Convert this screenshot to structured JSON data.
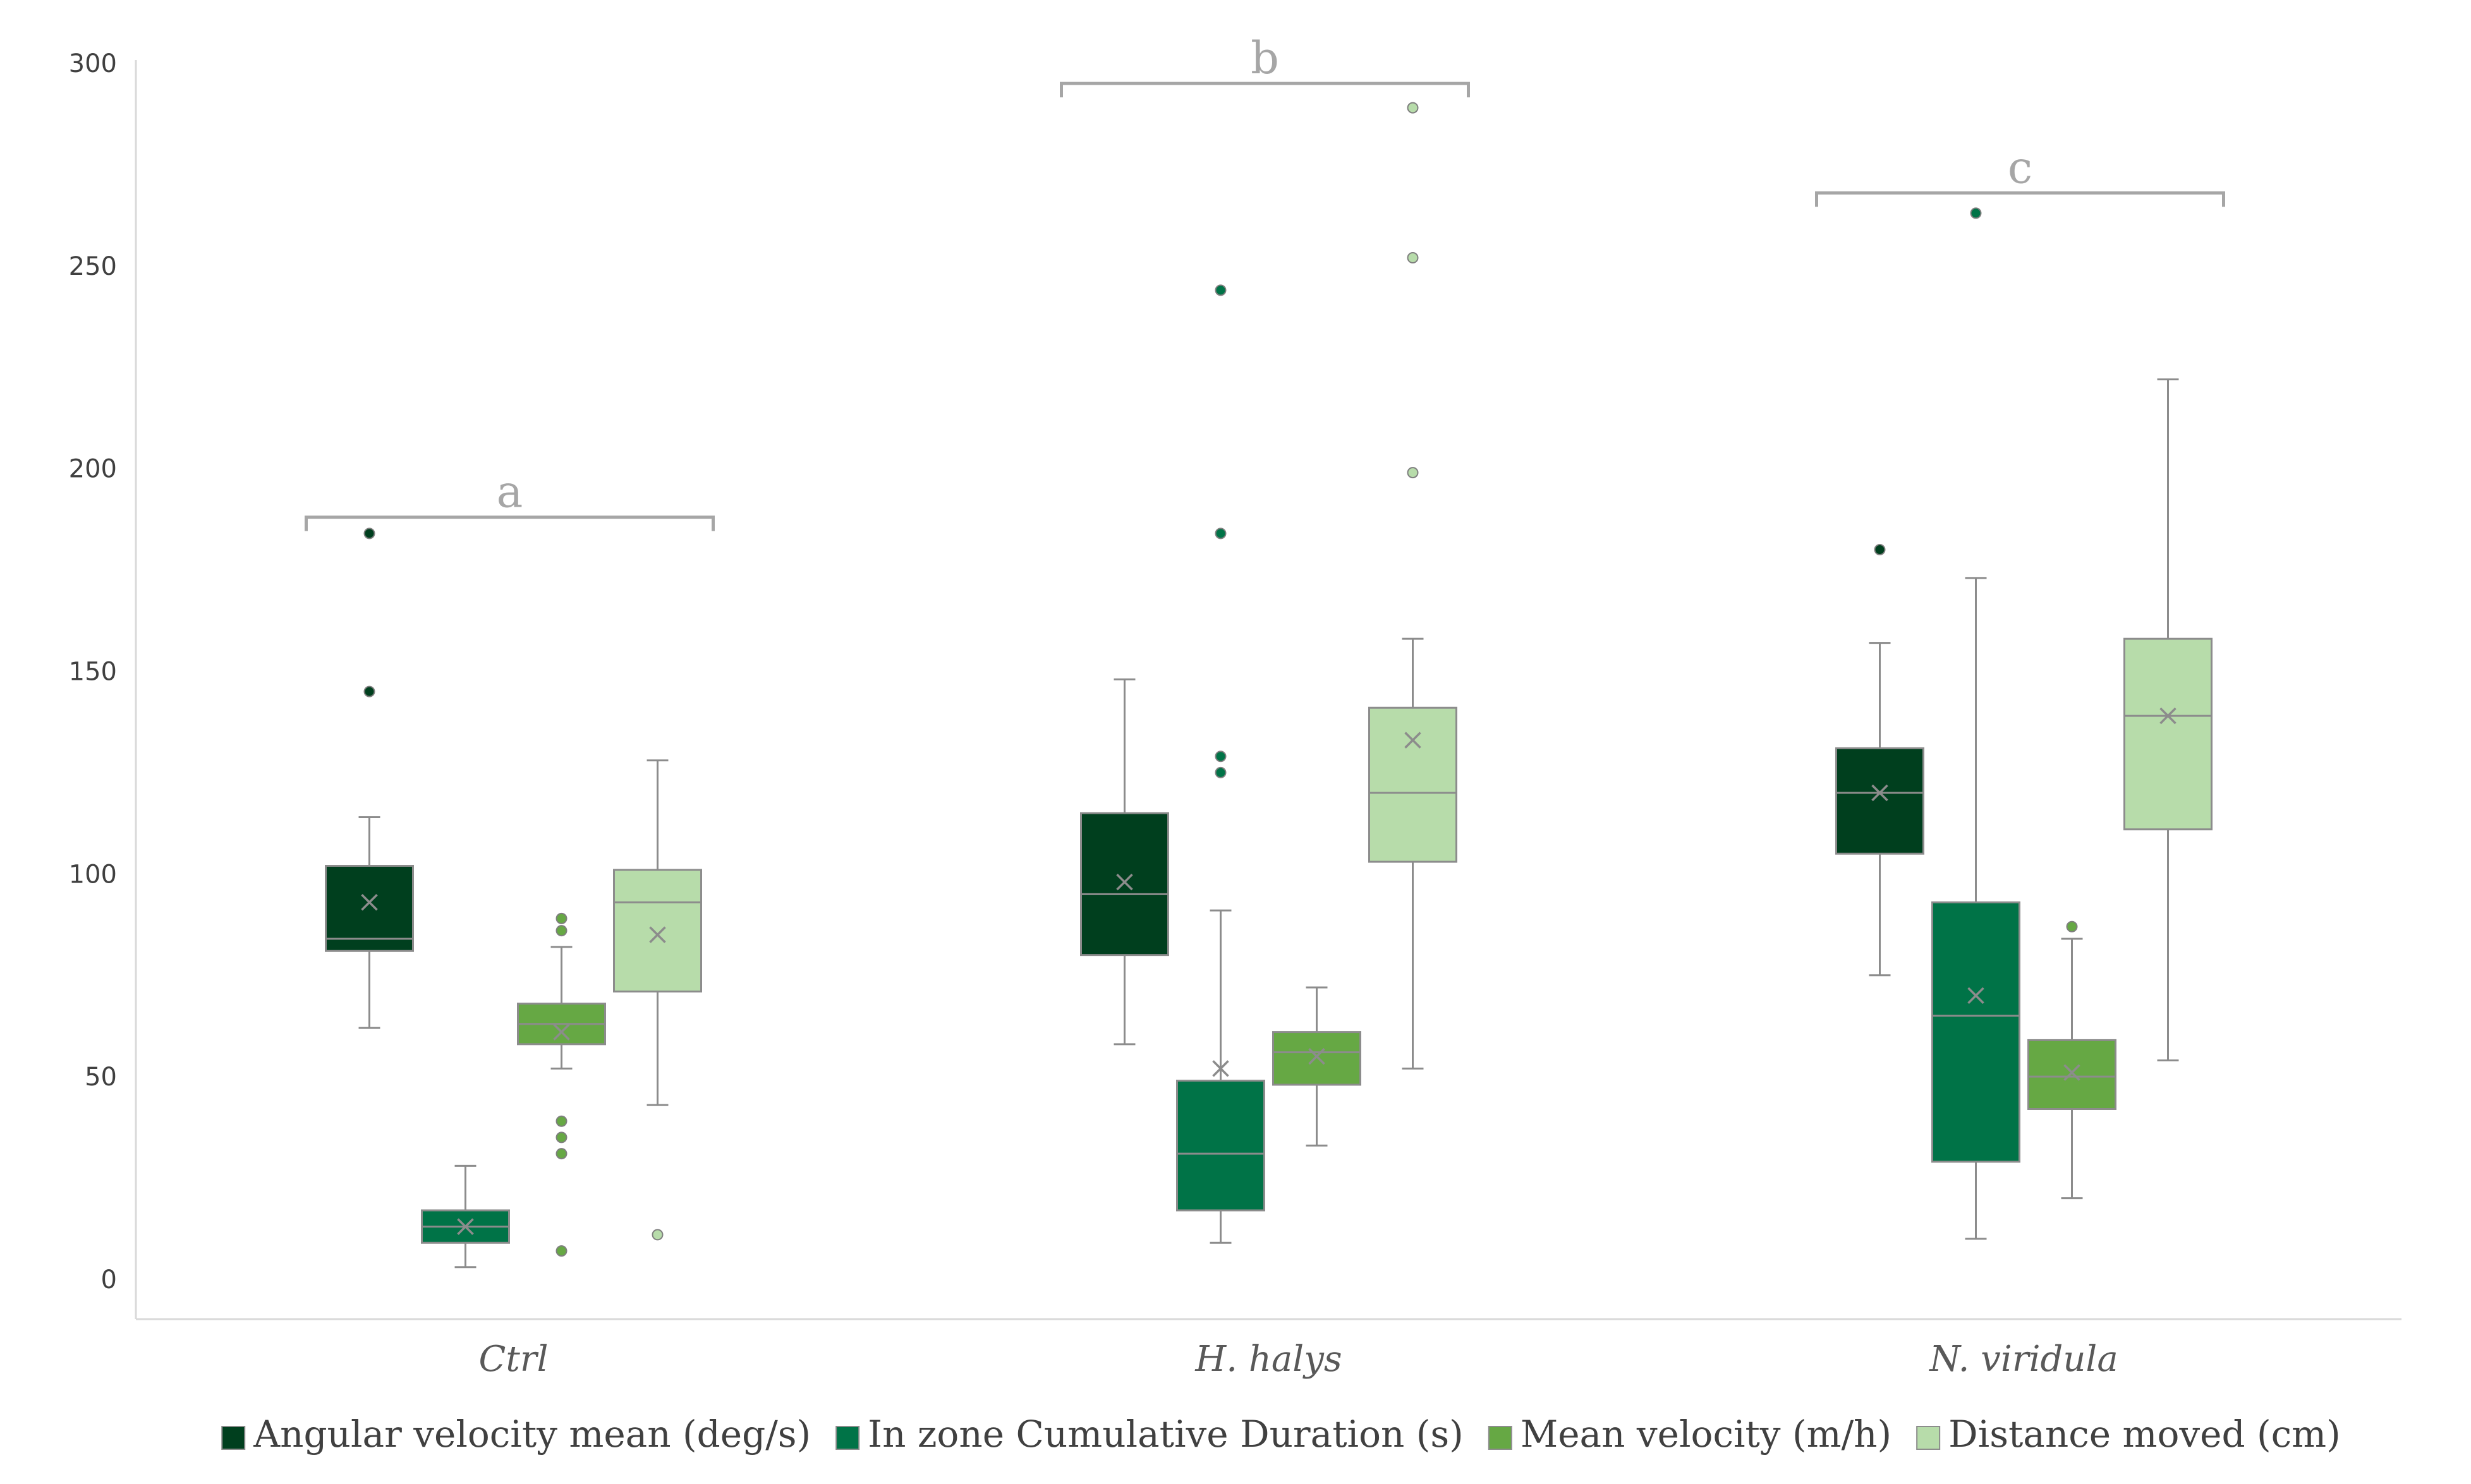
{
  "chart_data": {
    "type": "box",
    "title": "",
    "xlabel": "",
    "ylabel": "",
    "ylim": [
      0,
      300
    ],
    "yticks": [
      0,
      50,
      100,
      150,
      200,
      250,
      300
    ],
    "categories": [
      "Ctrl",
      "H. halys",
      "N. viridula"
    ],
    "series": [
      {
        "name": "Angular velocity mean (deg/s)",
        "color": "#003f1e",
        "boxes": [
          {
            "min": 62,
            "q1": 81,
            "median": 84,
            "q3": 102,
            "max": 114,
            "mean": 93,
            "outliers": [
              145,
              184
            ]
          },
          {
            "min": 58,
            "q1": 80,
            "median": 95,
            "q3": 115,
            "max": 148,
            "mean": 98,
            "outliers": []
          },
          {
            "min": 75,
            "q1": 105,
            "median": 120,
            "q3": 131,
            "max": 157,
            "mean": 120,
            "outliers": [
              180
            ]
          }
        ]
      },
      {
        "name": "In zone Cumulative Duration (s)",
        "color": "#007347",
        "boxes": [
          {
            "min": 3,
            "q1": 9,
            "median": 13,
            "q3": 17,
            "max": 28,
            "mean": 13,
            "outliers": []
          },
          {
            "min": 9,
            "q1": 17,
            "median": 31,
            "q3": 49,
            "max": 91,
            "mean": 52,
            "outliers": [
              125,
              129,
              184,
              244
            ]
          },
          {
            "min": 10,
            "q1": 29,
            "median": 65,
            "q3": 93,
            "max": 173,
            "mean": 70,
            "outliers": [
              263
            ]
          }
        ]
      },
      {
        "name": "Mean velocity (m/h)",
        "color": "#66a844",
        "boxes": [
          {
            "min": 52,
            "q1": 58,
            "median": 63,
            "q3": 68,
            "max": 82,
            "mean": 61,
            "outliers": [
              7,
              31,
              35,
              39,
              86,
              89
            ]
          },
          {
            "min": 33,
            "q1": 48,
            "median": 56,
            "q3": 61,
            "max": 72,
            "mean": 55,
            "outliers": []
          },
          {
            "min": 20,
            "q1": 42,
            "median": 50,
            "q3": 59,
            "max": 84,
            "mean": 51,
            "outliers": [
              87
            ]
          }
        ]
      },
      {
        "name": "Distance moved (cm)",
        "color": "#b7dcaa",
        "boxes": [
          {
            "min": 43,
            "q1": 71,
            "median": 93,
            "q3": 101,
            "max": 128,
            "mean": 85,
            "outliers": [
              11
            ]
          },
          {
            "min": 52,
            "q1": 103,
            "median": 120,
            "q3": 141,
            "max": 158,
            "mean": 133,
            "outliers": [
              199,
              252,
              289
            ]
          },
          {
            "min": 54,
            "q1": 111,
            "median": 139,
            "q3": 158,
            "max": 222,
            "mean": 139,
            "outliers": []
          }
        ]
      }
    ],
    "significance": [
      {
        "label": "a",
        "category": "Ctrl",
        "y": 188
      },
      {
        "label": "b",
        "category": "H. halys",
        "y": 295
      },
      {
        "label": "c",
        "category": "N. viridula",
        "y": 268
      }
    ],
    "legend_position": "bottom"
  }
}
